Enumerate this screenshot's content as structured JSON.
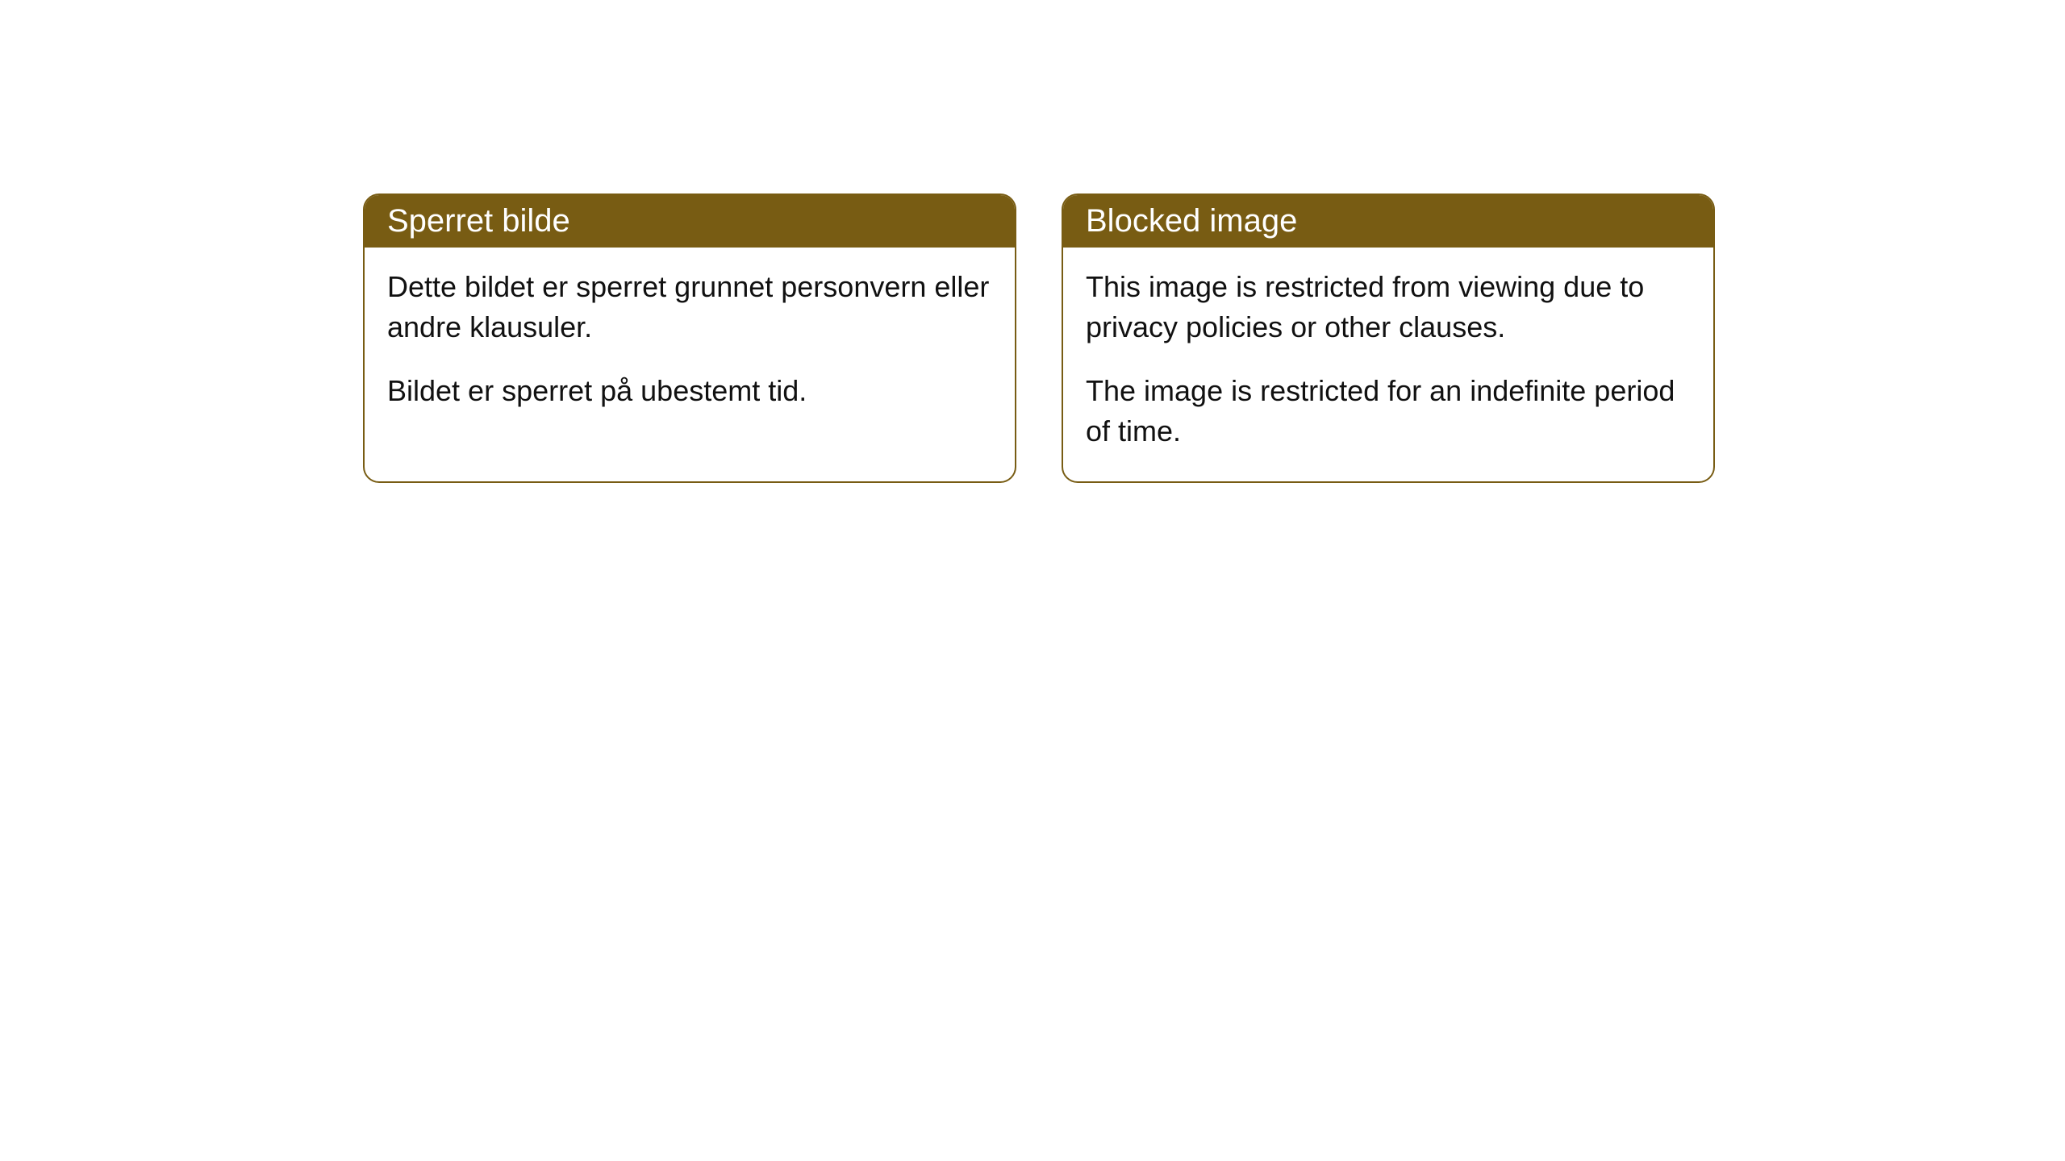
{
  "cards": [
    {
      "header": "Sperret bilde",
      "para1": "Dette bildet er sperret grunnet personvern eller andre klausuler.",
      "para2": "Bildet er sperret på ubestemt tid."
    },
    {
      "header": "Blocked image",
      "para1": "This image is restricted from viewing due to privacy policies or other clauses.",
      "para2": "The image is restricted for an indefinite period of time."
    }
  ],
  "styling": {
    "header_bg": "#785c13",
    "header_text_color": "#ffffff",
    "border_color": "#785c13",
    "body_bg": "#ffffff",
    "body_text_color": "#111111",
    "border_radius": "20px",
    "header_fontsize": 40,
    "body_fontsize": 36
  }
}
